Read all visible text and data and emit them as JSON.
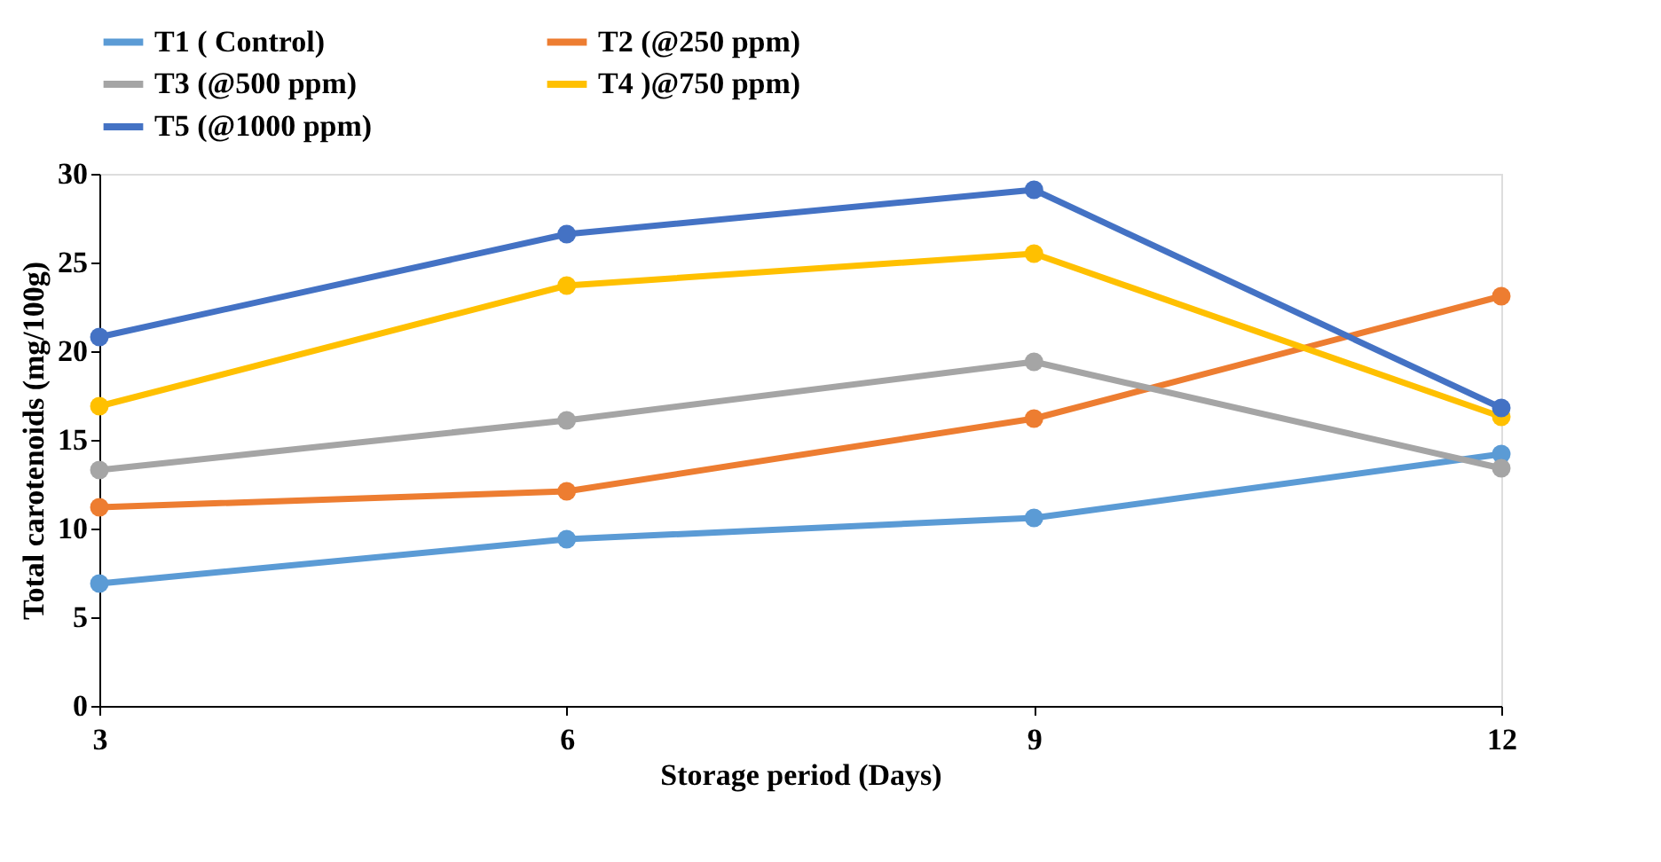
{
  "chart_data": {
    "type": "line",
    "xlabel": "Storage period (Days)",
    "ylabel": "Total carotenoids (mg/100g)",
    "categories": [
      "3",
      "6",
      "9",
      "12"
    ],
    "series": [
      {
        "name": "T1 ( Control)",
        "color": "#5b9bd5",
        "values": [
          6.9,
          9.4,
          10.6,
          14.2
        ]
      },
      {
        "name": "T2 (@250 ppm)",
        "color": "#ed7d31",
        "values": [
          11.2,
          12.1,
          16.2,
          23.1
        ]
      },
      {
        "name": "T3 (@500 ppm)",
        "color": "#a5a5a5",
        "values": [
          13.3,
          16.1,
          19.4,
          13.4
        ]
      },
      {
        "name": "T4 )@750 ppm)",
        "color": "#ffc000",
        "values": [
          16.9,
          23.7,
          25.5,
          16.3
        ]
      },
      {
        "name": "T5 (@1000 ppm)",
        "color": "#4472c4",
        "values": [
          20.8,
          26.6,
          29.1,
          16.8
        ]
      }
    ],
    "ylim": [
      0,
      30
    ],
    "yticks": [
      0,
      5,
      10,
      15,
      20,
      25,
      30
    ],
    "grid": false,
    "legend": "top",
    "marker": "circle",
    "line_style": "solid"
  }
}
